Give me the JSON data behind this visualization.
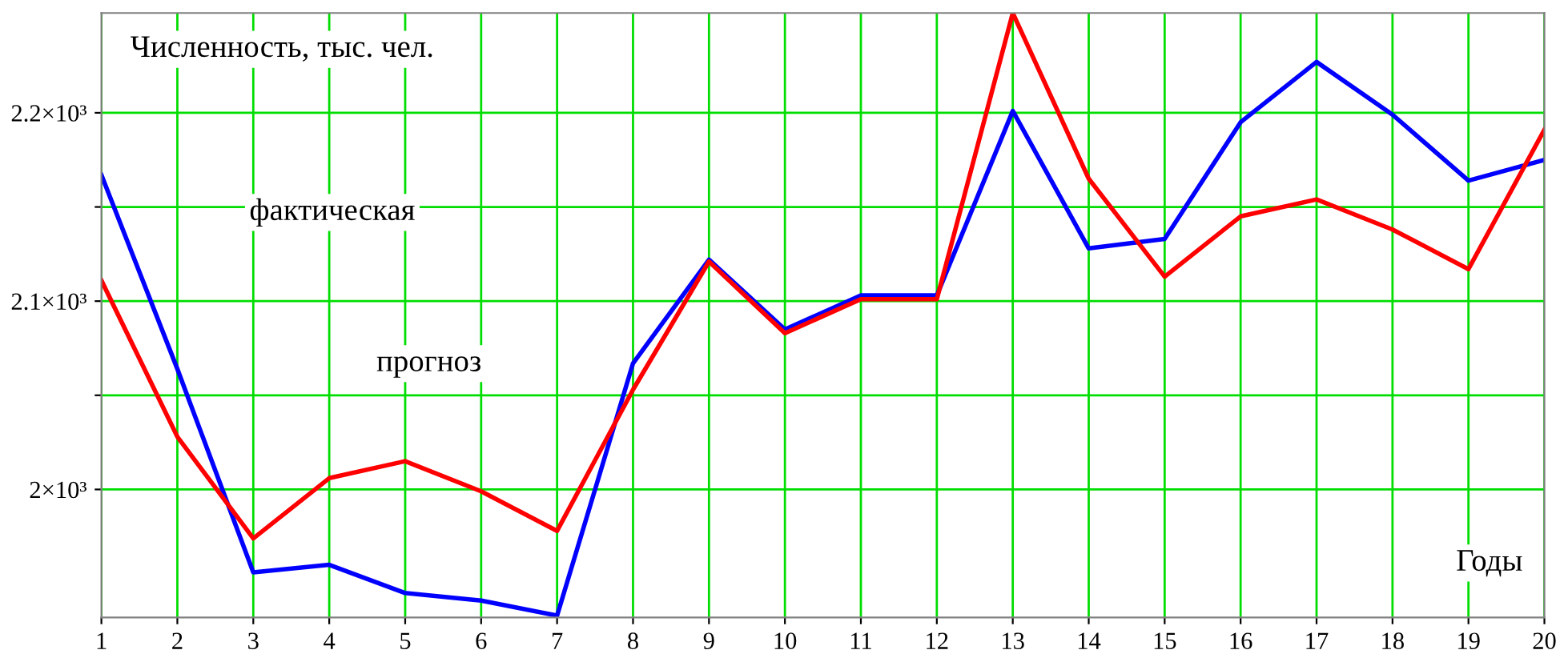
{
  "chart_data": {
    "type": "line",
    "ylabel": "Численность, тыс. чел.",
    "xlabel": "Годы",
    "x": [
      1,
      2,
      3,
      4,
      5,
      6,
      7,
      8,
      9,
      10,
      11,
      12,
      13,
      14,
      15,
      16,
      17,
      18,
      19,
      20
    ],
    "series": [
      {
        "color": "#0000ff",
        "values": [
          2167,
          2064,
          1956,
          1960,
          1945,
          1941,
          1933,
          2067,
          2122,
          2085,
          2103,
          2103,
          2201,
          2128,
          2133,
          2195,
          2227,
          2199,
          2164,
          2175
        ]
      },
      {
        "color": "#ff0000",
        "values": [
          2111,
          2028,
          1974,
          2006,
          2015,
          1999,
          1978,
          2053,
          2121,
          2083,
          2101,
          2101,
          2253,
          2165,
          2113,
          2145,
          2154,
          2138,
          2117,
          2191
        ]
      }
    ],
    "annotations": [
      "фактическая",
      "прогноз"
    ],
    "xlim": [
      1,
      20
    ],
    "xticks": [
      1,
      2,
      3,
      4,
      5,
      6,
      7,
      8,
      9,
      10,
      11,
      12,
      13,
      14,
      15,
      16,
      17,
      18,
      19,
      20
    ],
    "ylim": [
      1932,
      2253
    ],
    "yticks": [
      {
        "value": 2000,
        "label": "2×10³"
      },
      {
        "value": 2050,
        "label": null
      },
      {
        "value": 2100,
        "label": "2.1×10³"
      },
      {
        "value": 2150,
        "label": null
      },
      {
        "value": 2200,
        "label": "2.2×10³"
      }
    ],
    "grid": true,
    "line_style": "solid",
    "marker": "none"
  }
}
